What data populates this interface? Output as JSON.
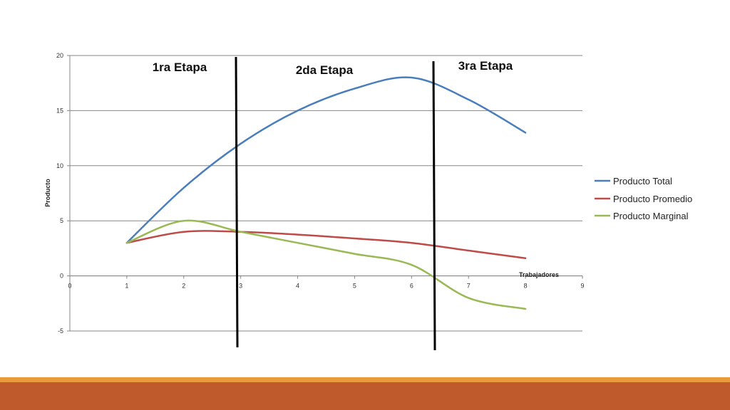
{
  "chart_data": {
    "type": "line",
    "xlabel": "Trabajadores",
    "ylabel": "Producto",
    "xlim": [
      0,
      9
    ],
    "ylim": [
      -5,
      20
    ],
    "x_ticks": [
      "0",
      "1",
      "2",
      "3",
      "4",
      "5",
      "6",
      "7",
      "8",
      "9"
    ],
    "y_ticks": [
      "20",
      "15",
      "10",
      "5",
      "0",
      "-5"
    ],
    "grid": "horizontal",
    "legend_position": "right",
    "x": [
      1,
      2,
      3,
      4,
      5,
      6,
      7,
      8
    ],
    "series": [
      {
        "name": "Producto Total",
        "color": "#4a7ebb",
        "values": [
          3,
          8,
          12,
          15,
          17,
          18,
          16,
          13
        ]
      },
      {
        "name": "Producto Promedio",
        "color": "#be4b48",
        "values": [
          3,
          4,
          4,
          3.75,
          3.4,
          3,
          2.3,
          1.6
        ]
      },
      {
        "name": "Producto Marginal",
        "color": "#98b954",
        "values": [
          3,
          5,
          4,
          3,
          2,
          1,
          -2,
          -3
        ]
      }
    ],
    "stages": [
      {
        "label": "1ra Etapa"
      },
      {
        "label": "2da Etapa"
      },
      {
        "label": "3ra Etapa"
      }
    ]
  },
  "colors": {
    "footer_stripe": "#e99a3c",
    "footer_bar": "#bf5a2d",
    "divider": "#000000",
    "grid": "#868686"
  }
}
